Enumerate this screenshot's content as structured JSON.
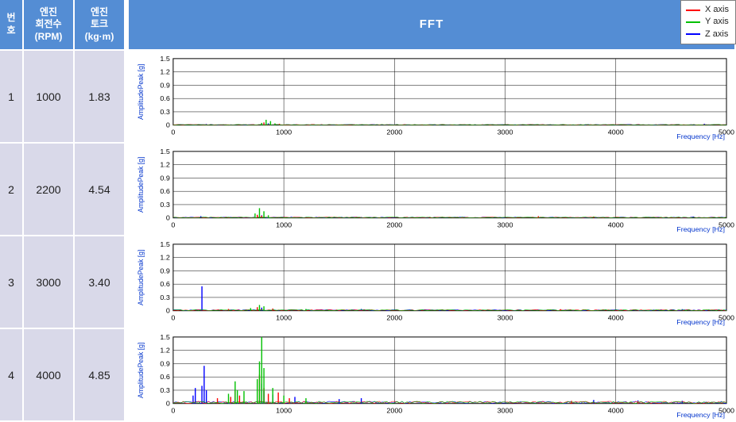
{
  "columns": {
    "no": "번\n호",
    "rpm": "엔진\n회전수\n(RPM)",
    "torque": "엔진\n토크\n(kg·m)",
    "fft": "FFT"
  },
  "rows": [
    {
      "no": "1",
      "rpm": "1000",
      "torque": "1.83"
    },
    {
      "no": "2",
      "rpm": "2200",
      "torque": "4.54"
    },
    {
      "no": "3",
      "rpm": "3000",
      "torque": "3.40"
    },
    {
      "no": "4",
      "rpm": "4000",
      "torque": "4.85"
    }
  ],
  "legend": {
    "items": [
      {
        "label": "X axis",
        "color": "#ff0000"
      },
      {
        "label": "Y axis",
        "color": "#00c000"
      },
      {
        "label": "Z axis",
        "color": "#0000ff"
      }
    ],
    "border_color": "#808080"
  },
  "chart_common": {
    "y_label": "AmplitudePeak [g]",
    "x_label": "Frequency [Hz]",
    "y_label_color": "#0033cc",
    "x_label_color": "#0033cc",
    "y_ticks": [
      0,
      0.3,
      0.6,
      0.9,
      1.2,
      1.5
    ],
    "y_tick_labels": [
      "0",
      "0.3",
      "0.6",
      "0.9",
      "1.2",
      "1.5"
    ],
    "x_ticks": [
      0,
      1000,
      2000,
      3000,
      4000,
      5000
    ],
    "x_tick_labels": [
      "0",
      "1000",
      "2000",
      "3000",
      "4000",
      "5000"
    ],
    "xlim": [
      0,
      5000
    ],
    "ylim": [
      0,
      1.5
    ],
    "grid_color": "#000000",
    "background_color": "#ffffff",
    "tick_font_size": 9,
    "label_font_size": 9
  },
  "series_colors": {
    "x": "#ff0000",
    "y": "#00c000",
    "z": "#0000ff"
  },
  "charts": [
    {
      "noise_amp": 0.015,
      "peaks_x": [
        {
          "f": 820,
          "a": 0.06
        },
        {
          "f": 960,
          "a": 0.03
        }
      ],
      "peaks_y": [
        {
          "f": 840,
          "a": 0.12
        },
        {
          "f": 880,
          "a": 0.09
        },
        {
          "f": 800,
          "a": 0.05
        },
        {
          "f": 920,
          "a": 0.04
        }
      ],
      "peaks_z": [
        {
          "f": 860,
          "a": 0.04
        },
        {
          "f": 4800,
          "a": 0.03
        },
        {
          "f": 300,
          "a": 0.025
        },
        {
          "f": 4200,
          "a": 0.02
        }
      ]
    },
    {
      "noise_amp": 0.02,
      "peaks_x": [
        {
          "f": 760,
          "a": 0.07
        },
        {
          "f": 800,
          "a": 0.05
        },
        {
          "f": 3300,
          "a": 0.04
        },
        {
          "f": 3800,
          "a": 0.03
        }
      ],
      "peaks_y": [
        {
          "f": 780,
          "a": 0.22
        },
        {
          "f": 820,
          "a": 0.15
        },
        {
          "f": 740,
          "a": 0.1
        },
        {
          "f": 860,
          "a": 0.06
        }
      ],
      "peaks_z": [
        {
          "f": 800,
          "a": 0.06
        },
        {
          "f": 250,
          "a": 0.04
        },
        {
          "f": 4700,
          "a": 0.03
        },
        {
          "f": 1700,
          "a": 0.02
        }
      ]
    },
    {
      "noise_amp": 0.025,
      "peaks_x": [
        {
          "f": 760,
          "a": 0.08
        },
        {
          "f": 900,
          "a": 0.05
        },
        {
          "f": 500,
          "a": 0.04
        },
        {
          "f": 3500,
          "a": 0.035
        }
      ],
      "peaks_y": [
        {
          "f": 780,
          "a": 0.13
        },
        {
          "f": 820,
          "a": 0.1
        },
        {
          "f": 700,
          "a": 0.06
        },
        {
          "f": 1200,
          "a": 0.04
        }
      ],
      "peaks_z": [
        {
          "f": 260,
          "a": 0.55
        },
        {
          "f": 800,
          "a": 0.07
        },
        {
          "f": 1700,
          "a": 0.04
        },
        {
          "f": 4600,
          "a": 0.035
        },
        {
          "f": 4000,
          "a": 0.03
        }
      ]
    },
    {
      "noise_amp": 0.05,
      "peaks_x": [
        {
          "f": 780,
          "a": 0.65
        },
        {
          "f": 820,
          "a": 0.35
        },
        {
          "f": 860,
          "a": 0.22
        },
        {
          "f": 560,
          "a": 0.3
        },
        {
          "f": 600,
          "a": 0.18
        },
        {
          "f": 520,
          "a": 0.15
        },
        {
          "f": 400,
          "a": 0.12
        },
        {
          "f": 950,
          "a": 0.25
        },
        {
          "f": 1050,
          "a": 0.12
        },
        {
          "f": 3600,
          "a": 0.06
        },
        {
          "f": 4200,
          "a": 0.05
        }
      ],
      "peaks_y": [
        {
          "f": 800,
          "a": 1.5
        },
        {
          "f": 780,
          "a": 0.95
        },
        {
          "f": 820,
          "a": 0.8
        },
        {
          "f": 760,
          "a": 0.55
        },
        {
          "f": 560,
          "a": 0.5
        },
        {
          "f": 580,
          "a": 0.3
        },
        {
          "f": 900,
          "a": 0.35
        },
        {
          "f": 640,
          "a": 0.28
        },
        {
          "f": 1000,
          "a": 0.18
        },
        {
          "f": 500,
          "a": 0.22
        },
        {
          "f": 1200,
          "a": 0.12
        }
      ],
      "peaks_z": [
        {
          "f": 280,
          "a": 0.85
        },
        {
          "f": 260,
          "a": 0.4
        },
        {
          "f": 300,
          "a": 0.3
        },
        {
          "f": 200,
          "a": 0.35
        },
        {
          "f": 180,
          "a": 0.18
        },
        {
          "f": 800,
          "a": 0.45
        },
        {
          "f": 820,
          "a": 0.28
        },
        {
          "f": 900,
          "a": 0.2
        },
        {
          "f": 1100,
          "a": 0.15
        },
        {
          "f": 1500,
          "a": 0.1
        },
        {
          "f": 1700,
          "a": 0.12
        },
        {
          "f": 3800,
          "a": 0.08
        },
        {
          "f": 4200,
          "a": 0.07
        },
        {
          "f": 4600,
          "a": 0.06
        }
      ]
    }
  ],
  "table_style": {
    "header_bg": "#548dd4",
    "header_fg": "#ffffff",
    "cell_bg": "#d9d9e9",
    "border_color": "#ffffff",
    "header_font_size": 12,
    "cell_font_size": 14
  }
}
